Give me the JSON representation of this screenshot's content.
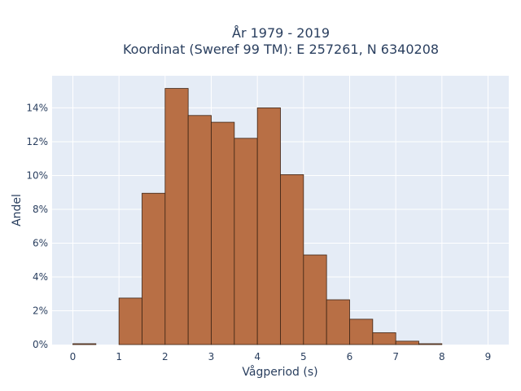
{
  "chart_data": {
    "type": "bar",
    "title_line1": "År 1979 - 2019",
    "title_line2": "Koordinat (Sweref 99 TM): E 257261, N 6340208",
    "xlabel": "Vågperiod (s)",
    "ylabel": "Andel",
    "bin_width": 0.5,
    "bin_starts": [
      0,
      1,
      1.5,
      2,
      2.5,
      3,
      3.5,
      4,
      4.5,
      5,
      5.5,
      6,
      6.5,
      7,
      7.5
    ],
    "values": [
      0.05,
      2.75,
      8.95,
      15.15,
      13.55,
      13.15,
      12.2,
      14.0,
      10.05,
      5.3,
      2.65,
      1.5,
      0.7,
      0.2,
      0.05
    ],
    "xlim": [
      -0.45,
      9.45
    ],
    "ylim": [
      0,
      15.9
    ],
    "x_ticks": [
      "0",
      "1",
      "2",
      "3",
      "4",
      "5",
      "6",
      "7",
      "8",
      "9"
    ],
    "y_ticks": [
      "0%",
      "2%",
      "4%",
      "6%",
      "8%",
      "10%",
      "12%",
      "14%"
    ],
    "grid": true,
    "legend": "none",
    "colors": {
      "bar_fill": "#b86f45",
      "bar_edge": "#3d2415",
      "plot_bg": "#e5ecf6",
      "grid": "#ffffff",
      "text": "#2a3f5f"
    }
  }
}
